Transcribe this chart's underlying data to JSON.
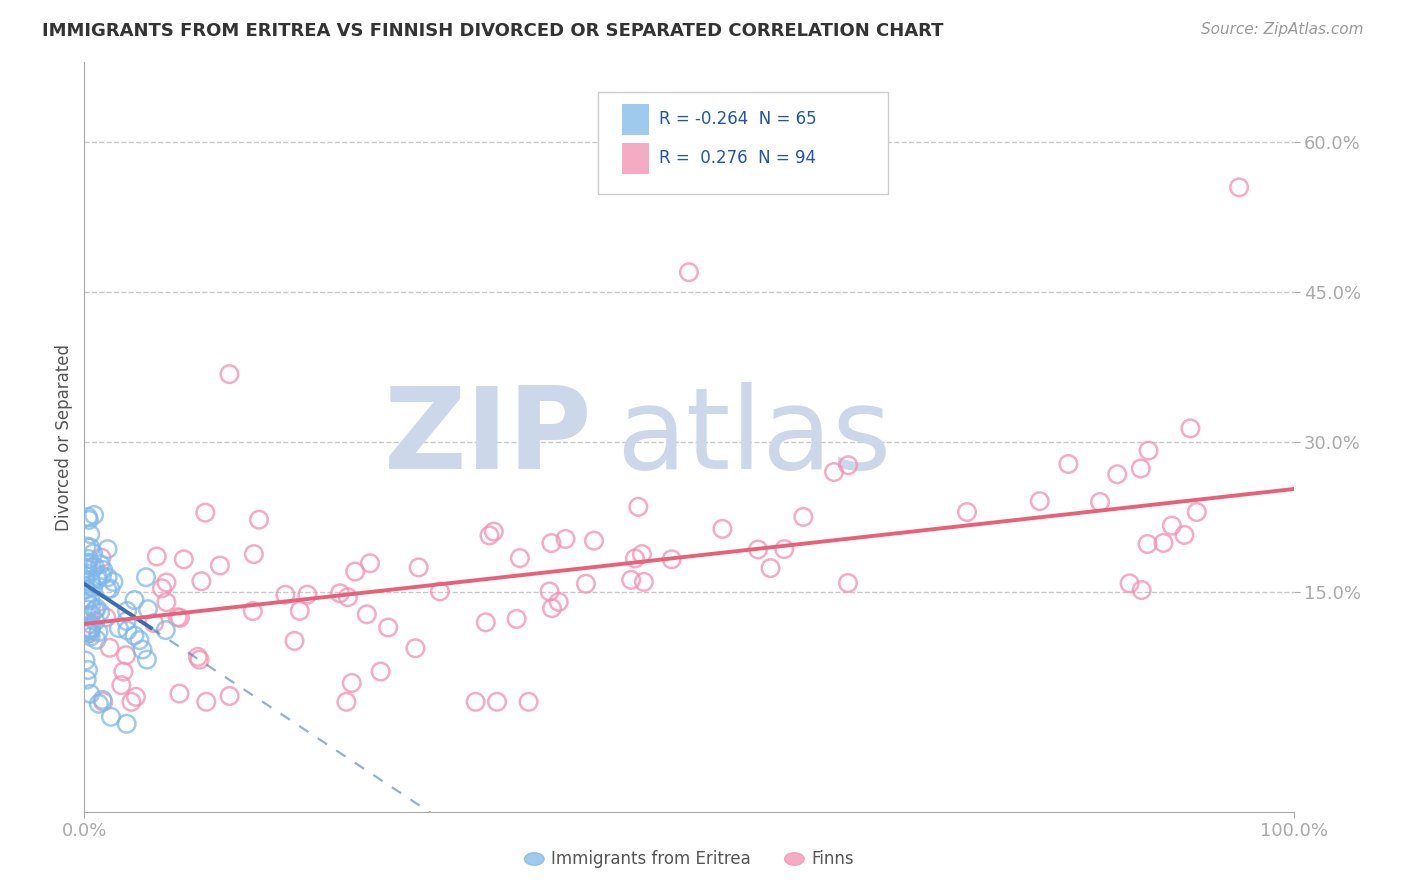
{
  "title": "IMMIGRANTS FROM ERITREA VS FINNISH DIVORCED OR SEPARATED CORRELATION CHART",
  "source": "Source: ZipAtlas.com",
  "ylabel": "Divorced or Separated",
  "legend_labels": [
    "Immigrants from Eritrea",
    "Finns"
  ],
  "r_values": [
    -0.264,
    0.276
  ],
  "n_values": [
    65,
    94
  ],
  "blue_color": "#7fb8e8",
  "pink_color": "#f48fb1",
  "blue_line_color": "#3a6fad",
  "pink_line_color": "#e8607a",
  "xlim": [
    0.0,
    1.0
  ],
  "ylim": [
    -0.07,
    0.68
  ],
  "ytick_vals": [
    0.15,
    0.3,
    0.45,
    0.6
  ],
  "ytick_labels": [
    "15.0%",
    "30.0%",
    "45.0%",
    "60.0%"
  ],
  "xtick_vals": [
    0.0,
    1.0
  ],
  "xtick_labels": [
    "0.0%",
    "100.0%"
  ],
  "grid_color": "#c8c8c8",
  "watermark_color": "#ccd8ea",
  "blue_intercept": 0.158,
  "blue_slope": -0.8,
  "pink_intercept": 0.118,
  "pink_slope": 0.135
}
